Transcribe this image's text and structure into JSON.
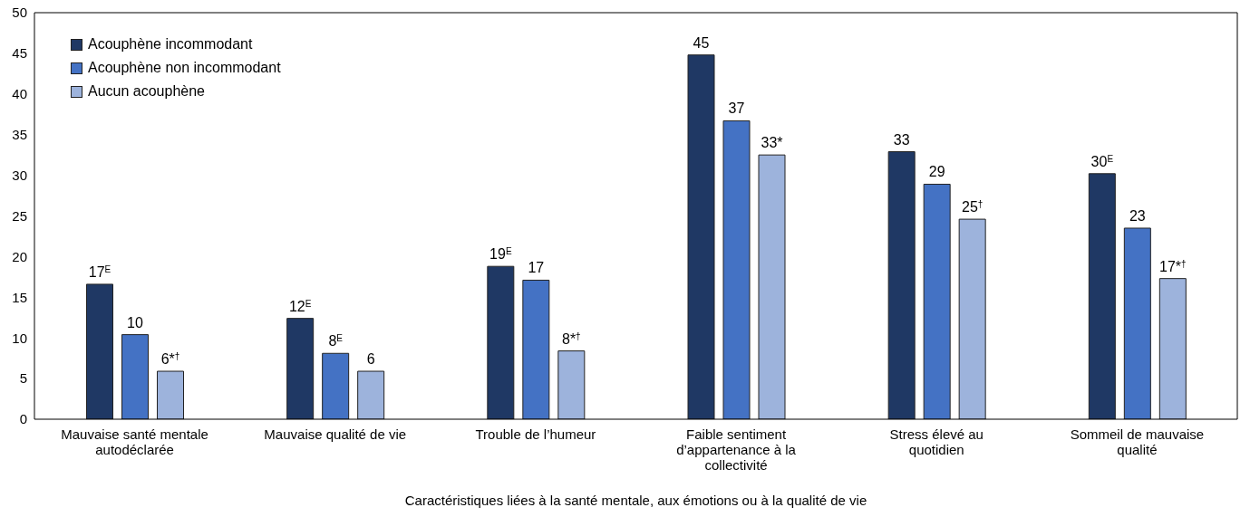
{
  "chart_data": {
    "type": "bar",
    "xlabel": "Caractéristiques liées à la santé mentale, aux émotions ou à la qualité de vie",
    "categories": [
      "Mauvaise santé mentale autodéclarée",
      "Mauvaise qualité de vie",
      "Trouble de l’humeur",
      "Faible sentiment d’appartenance à la collectivité",
      "Stress élevé au quotidien",
      "Sommeil de mauvaise qualité"
    ],
    "series": [
      {
        "name": "Acouphène incommodant",
        "color": "#1f3864",
        "values": [
          16.6,
          12.4,
          18.8,
          44.8,
          32.9,
          30.2
        ],
        "value_labels": [
          "17$^{E}$",
          "12$^{E}$",
          "19$^{E}$",
          "45",
          "33",
          "30$^{E}$"
        ]
      },
      {
        "name": "Acouphène non incommodant",
        "color": "#4472c4",
        "values": [
          10.4,
          8.1,
          17.1,
          36.7,
          28.9,
          23.5
        ],
        "value_labels": [
          "10",
          "8$^{E}$",
          "17",
          "37",
          "29",
          "23"
        ]
      },
      {
        "name": "Aucun acouphène",
        "color": "#9db3dc",
        "values": [
          5.9,
          5.9,
          8.4,
          32.5,
          24.6,
          17.3
        ],
        "value_labels": [
          "6*$^{†}$",
          "6",
          "8*$^{†}$",
          "33*",
          "25$^{†}$",
          "17*$^{†}$"
        ]
      }
    ],
    "ylim": [
      0,
      50
    ],
    "yticks": [
      0,
      5,
      10,
      15,
      20,
      25,
      30,
      35,
      40,
      45,
      50
    ],
    "grid": false,
    "legend": "top left"
  }
}
